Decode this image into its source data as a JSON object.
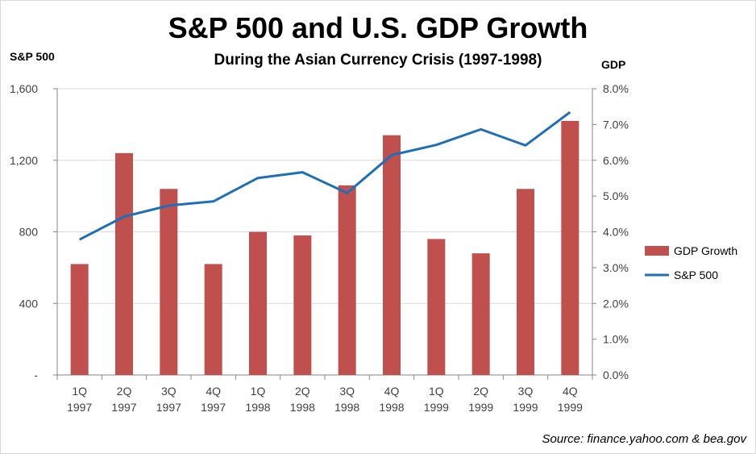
{
  "chart_data": {
    "type": "bar+line",
    "title": "S&P 500 and U.S. GDP Growth",
    "subtitle": "During the Asian Currency Crisis (1997-1998)",
    "left_axis_label": "S&P 500",
    "right_axis_label": "GDP",
    "categories": [
      [
        "1Q",
        "1997"
      ],
      [
        "2Q",
        "1997"
      ],
      [
        "3Q",
        "1997"
      ],
      [
        "4Q",
        "1997"
      ],
      [
        "1Q",
        "1998"
      ],
      [
        "2Q",
        "1998"
      ],
      [
        "3Q",
        "1998"
      ],
      [
        "4Q",
        "1998"
      ],
      [
        "1Q",
        "1999"
      ],
      [
        "2Q",
        "1999"
      ],
      [
        "3Q",
        "1999"
      ],
      [
        "4Q",
        "1999"
      ]
    ],
    "left_ticks": [
      "-",
      "400",
      "800",
      "1,200",
      "1,600"
    ],
    "right_ticks": [
      "0.0%",
      "1.0%",
      "2.0%",
      "3.0%",
      "4.0%",
      "5.0%",
      "6.0%",
      "7.0%",
      "8.0%"
    ],
    "ylim_left": [
      0,
      1600
    ],
    "ylim_right": [
      0,
      8
    ],
    "grid": true,
    "legend_position": "right",
    "series": [
      {
        "name": "GDP Growth",
        "type": "bar",
        "axis": "right",
        "color": "#c0504d",
        "values": [
          3.1,
          6.2,
          5.2,
          3.1,
          4.0,
          3.9,
          5.3,
          6.7,
          3.8,
          3.4,
          5.2,
          7.1
        ]
      },
      {
        "name": "S&P 500",
        "type": "line",
        "axis": "left",
        "color": "#1f6fb5",
        "values": [
          757,
          885,
          947,
          970,
          1101,
          1133,
          1017,
          1229,
          1286,
          1373,
          1283,
          1469
        ]
      }
    ]
  },
  "source_text": "Source:  finance.yahoo.com & bea.gov"
}
